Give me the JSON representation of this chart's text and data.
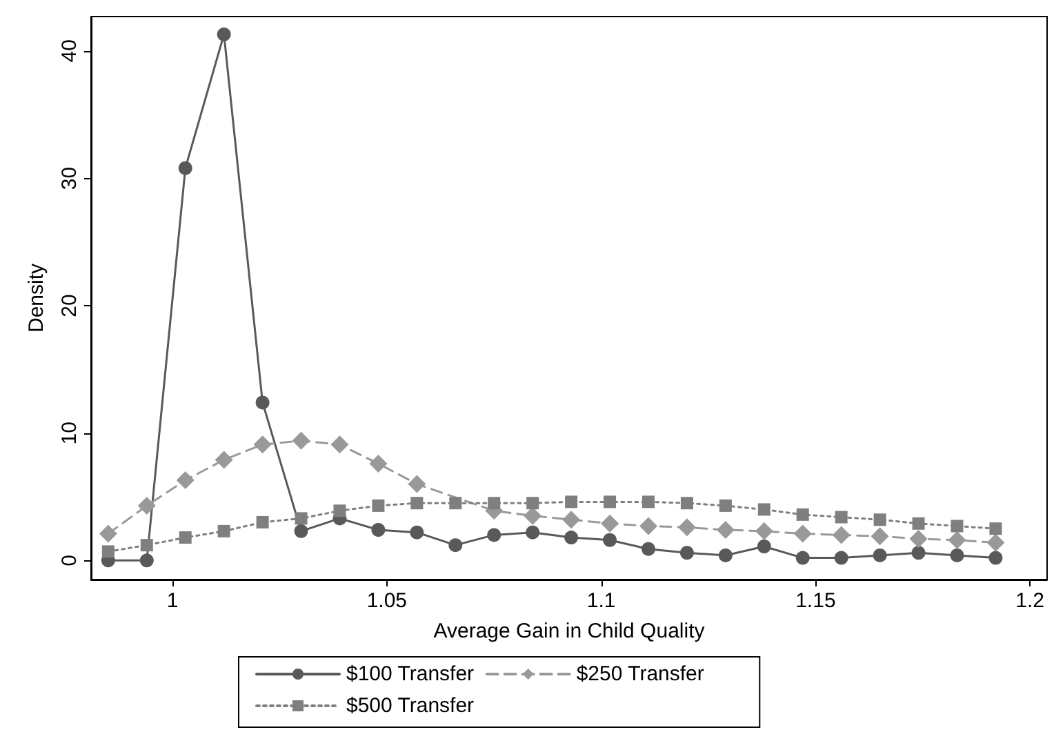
{
  "chart_data": {
    "type": "line",
    "xlabel": "Average Gain in Child Quality",
    "ylabel": "Density",
    "x": [
      0.985,
      0.994,
      1.003,
      1.012,
      1.021,
      1.03,
      1.039,
      1.048,
      1.057,
      1.066,
      1.075,
      1.084,
      1.093,
      1.102,
      1.111,
      1.12,
      1.129,
      1.138,
      1.147,
      1.156,
      1.165,
      1.174,
      1.183,
      1.192
    ],
    "series": [
      {
        "name": "$100 Transfer",
        "color": "#595959",
        "marker": "circle",
        "line_style": "solid",
        "values": [
          0,
          0,
          30.8,
          41.3,
          12.4,
          2.3,
          3.3,
          2.4,
          2.2,
          1.2,
          2.0,
          2.2,
          1.8,
          1.6,
          0.9,
          0.6,
          0.4,
          1.1,
          0.2,
          0.2,
          0.4,
          0.6,
          0.4,
          0.2
        ]
      },
      {
        "name": "$250 Transfer",
        "color": "#999999",
        "marker": "diamond",
        "line_style": "dashed",
        "values": [
          2.1,
          4.3,
          6.3,
          7.9,
          9.1,
          9.4,
          9.1,
          7.6,
          6.0,
          null,
          3.9,
          3.5,
          3.2,
          2.9,
          2.7,
          2.6,
          2.4,
          2.3,
          2.1,
          2.0,
          1.9,
          1.7,
          1.6,
          1.4
        ]
      },
      {
        "name": "$500 Transfer",
        "color": "#7f7f7f",
        "marker": "square",
        "line_style": "dotted",
        "values": [
          0.7,
          1.2,
          1.8,
          2.3,
          3.0,
          3.3,
          3.9,
          4.3,
          4.5,
          4.5,
          4.5,
          4.5,
          4.6,
          4.6,
          4.6,
          4.5,
          4.3,
          4.0,
          3.6,
          3.4,
          3.2,
          2.9,
          2.7,
          2.5
        ]
      }
    ],
    "xlim": [
      0.981,
      1.204
    ],
    "xticks": [
      1,
      1.05,
      1.1,
      1.15,
      1.2
    ],
    "ylim": [
      -1.5,
      42.7
    ],
    "yticks": [
      0,
      10,
      20,
      30,
      40
    ],
    "grid": false,
    "legend": "bottom"
  }
}
